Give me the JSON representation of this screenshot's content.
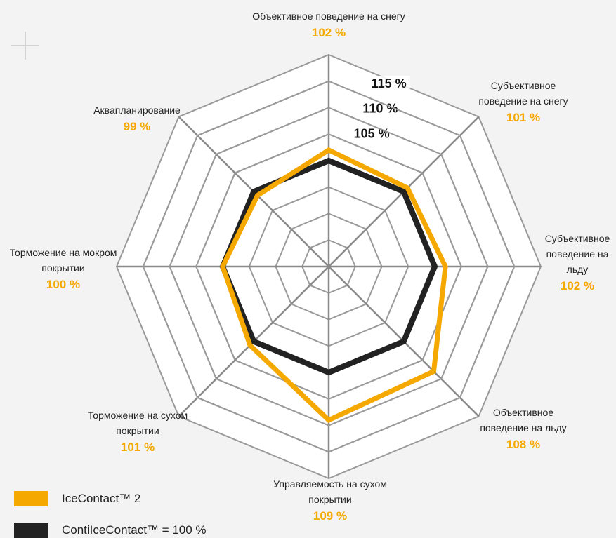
{
  "chart_data": {
    "type": "radar",
    "categories": [
      "Объективное поведение на снегу",
      "Субъективное поведение на снегу",
      "Субъективное поведение на льду",
      "Объективное поведение на льду",
      "Управляемость на сухом покрытии",
      "Торможение на сухом покрытии",
      "Торможение на мокром покрытии",
      "Аквапланирование"
    ],
    "series": [
      {
        "name": "ContiIceContact™ = 100 %",
        "color": "#222222",
        "values": [
          100,
          100,
          100,
          100,
          100,
          100,
          100,
          100
        ]
      },
      {
        "name": "IceContact™ 2",
        "color": "#f5a800",
        "values": [
          102,
          101,
          102,
          108,
          109,
          101,
          100,
          99
        ],
        "value_labels": [
          "102 %",
          "101 %",
          "102 %",
          "108 %",
          "109 %",
          "101 %",
          "100 %",
          "99 %"
        ]
      }
    ],
    "rlim": [
      80,
      120
    ],
    "rticks": [
      {
        "value": 105,
        "label": "105 %"
      },
      {
        "value": 110,
        "label": "110 %"
      },
      {
        "value": 115,
        "label": "115 %"
      }
    ],
    "grid": true
  }
}
